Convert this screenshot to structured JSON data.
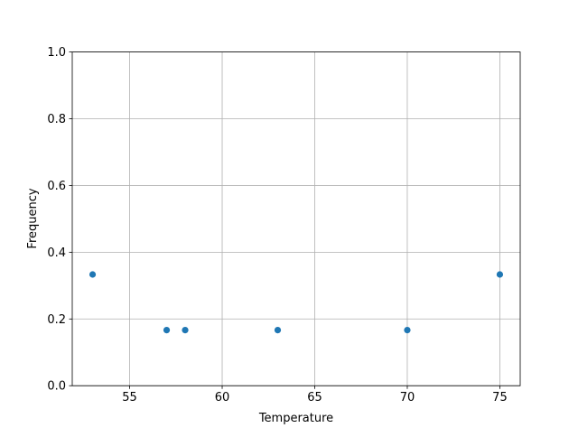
{
  "chart_data": {
    "type": "scatter",
    "title": "",
    "xlabel": "Temperature",
    "ylabel": "Frequency",
    "xlim": [
      51.9,
      76.1
    ],
    "ylim": [
      0.0,
      1.0
    ],
    "x_ticks": [
      55,
      60,
      65,
      70,
      75
    ],
    "x_tick_labels": [
      "55",
      "60",
      "65",
      "70",
      "75"
    ],
    "y_ticks": [
      0.0,
      0.2,
      0.4,
      0.6,
      0.8,
      1.0
    ],
    "y_tick_labels": [
      "0.0",
      "0.2",
      "0.4",
      "0.6",
      "0.8",
      "1.0"
    ],
    "grid": true,
    "color": "#1f77b4",
    "points": [
      {
        "x": 53,
        "y": 0.3333
      },
      {
        "x": 57,
        "y": 0.1667
      },
      {
        "x": 58,
        "y": 0.1667
      },
      {
        "x": 63,
        "y": 0.1667
      },
      {
        "x": 70,
        "y": 0.1667
      },
      {
        "x": 75,
        "y": 0.3333
      }
    ]
  }
}
